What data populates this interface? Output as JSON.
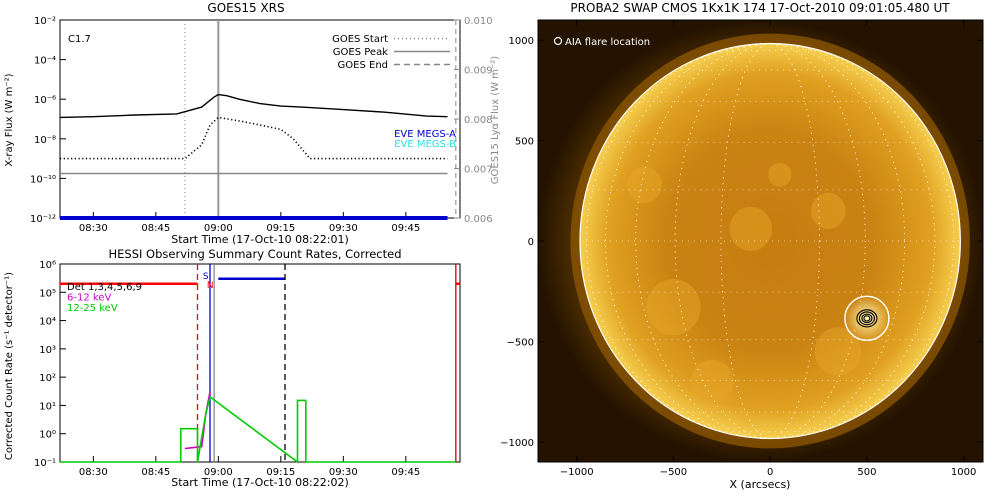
{
  "chart_data": [
    {
      "type": "line",
      "title": "GOES15 XRS",
      "xlabel": "Start Time (17-Oct-10 08:22:01)",
      "ylabel": "X-ray Flux (W m⁻²)",
      "ylabel_right": "GOES15 Lyα Flux (W m⁻²)",
      "y_scale": "log",
      "ylim": [
        1e-12,
        0.01
      ],
      "ylim_right": [
        0.006,
        0.01
      ],
      "x_ticks": [
        "08:30",
        "08:45",
        "09:00",
        "09:15",
        "09:30",
        "09:45"
      ],
      "y_ticks": [
        "10⁻²",
        "10⁻⁴",
        "10⁻⁶",
        "10⁻⁸",
        "10⁻¹⁰",
        "10⁻¹²"
      ],
      "y_ticks_right": [
        "0.010",
        "0.009",
        "0.008",
        "0.007",
        "0.006"
      ],
      "flare_class": "C1.7",
      "legend": [
        {
          "label": "GOES Start",
          "style": "dotted",
          "color": "#888888"
        },
        {
          "label": "GOES Peak",
          "style": "solid",
          "color": "#888888"
        },
        {
          "label": "GOES End",
          "style": "dashed",
          "color": "#888888"
        }
      ],
      "series_labels": [
        {
          "label": "EVE MEGS-A",
          "color": "#0000cc"
        },
        {
          "label": "EVE MEGS-B",
          "color": "#33dddd"
        }
      ],
      "series": [
        {
          "style": "solid",
          "color": "#000000",
          "x": [
            "08:22",
            "08:30",
            "08:40",
            "08:50",
            "08:56",
            "08:59",
            "09:00",
            "09:02",
            "09:05",
            "09:10",
            "09:15",
            "09:20",
            "09:30",
            "09:40",
            "09:50",
            "09:55"
          ],
          "values": [
            1.2e-07,
            1.3e-07,
            1.6e-07,
            1.8e-07,
            4e-07,
            1.3e-06,
            1.7e-06,
            1.5e-06,
            1e-06,
            6e-07,
            4.5e-07,
            4e-07,
            3e-07,
            2.2e-07,
            1.4e-07,
            1.3e-07
          ]
        },
        {
          "style": "dotted",
          "color": "#000000",
          "x": [
            "08:22",
            "08:35",
            "08:45",
            "08:52",
            "08:56",
            "08:58",
            "09:00",
            "09:05",
            "09:10",
            "09:15",
            "09:18",
            "09:22",
            "09:30",
            "09:40",
            "09:50",
            "09:55"
          ],
          "values": [
            1e-09,
            1e-09,
            1e-09,
            1e-09,
            5e-09,
            5e-08,
            1.2e-07,
            8e-08,
            5e-08,
            3e-08,
            1e-08,
            1e-09,
            1e-09,
            1e-09,
            1e-09,
            1e-09
          ]
        },
        {
          "style": "solid",
          "color": "#888888",
          "axis": "right",
          "x": [
            "08:22",
            "09:55"
          ],
          "values": [
            0.0069,
            0.0069
          ]
        },
        {
          "style": "solid",
          "color": "#0000cc",
          "x": [
            "08:22",
            "09:55"
          ],
          "values": [
            1e-12,
            1e-12
          ]
        }
      ],
      "markers": {
        "start": "08:52",
        "peak": "09:00",
        "end": "09:57"
      }
    },
    {
      "type": "line",
      "title": "HESSI Observing Summary Count Rates, Corrected",
      "xlabel": "Start Time (17-Oct-10 08:22:02)",
      "ylabel": "Corrected Count Rate (s⁻¹ detector⁻¹)",
      "y_scale": "log",
      "ylim": [
        0.1,
        1000000.0
      ],
      "x_ticks": [
        "08:30",
        "08:45",
        "09:00",
        "09:15",
        "09:30",
        "09:45"
      ],
      "y_ticks": [
        "10⁶",
        "10⁵",
        "10⁴",
        "10³",
        "10²",
        "10¹",
        "10⁰",
        "10⁻¹"
      ],
      "legend": [
        {
          "label": "Det 1,3,4,5,6,9",
          "color": "#000000"
        },
        {
          "label": "6-12 keV",
          "color": "#cc00cc"
        },
        {
          "label": "12-25 keV",
          "color": "#00cc00"
        }
      ],
      "annotations": [
        "S",
        "N"
      ],
      "series": [
        {
          "name": "6-12 keV",
          "color": "#cc00cc",
          "x": [
            "08:52",
            "08:56",
            "08:57",
            "08:58"
          ],
          "values": [
            0.3,
            0.35,
            5,
            30
          ]
        },
        {
          "name": "12-25 keV",
          "color": "#00cc00",
          "x": [
            "08:22",
            "08:51",
            "08:51",
            "08:55",
            "08:55",
            "08:57",
            "08:58",
            "09:19",
            "09:19",
            "09:21",
            "09:21",
            "09:57"
          ],
          "values": [
            0.1,
            0.1,
            1.5,
            1.5,
            0.1,
            5,
            20,
            0.1,
            15,
            15,
            0.1,
            0.1
          ]
        }
      ],
      "bars": [
        {
          "color": "#ff0000",
          "x0": "08:22",
          "x1": "08:55",
          "y": 200000.0
        },
        {
          "color": "#0000cc",
          "x0": "09:00",
          "x1": "09:16",
          "y": 300000.0
        },
        {
          "color": "#ff0000",
          "x0": "09:57",
          "x1": "09:58",
          "y": 200000.0
        }
      ],
      "vlines": [
        {
          "x": "08:55",
          "style": "dashed",
          "color": "#ff0000"
        },
        {
          "x": "08:58",
          "style": "solid",
          "color": "#0000cc"
        },
        {
          "x": "08:59",
          "style": "solid",
          "color": "#888888"
        },
        {
          "x": "09:16",
          "style": "dashed",
          "color": "#000000"
        },
        {
          "x": "09:57",
          "style": "solid",
          "color": "#cc0000"
        }
      ]
    },
    {
      "type": "heatmap",
      "title": "PROBA2 SWAP CMOS 1Kx1K 174 17-Oct-2010 09:01:05.480 UT",
      "legend_label": "AIA flare location",
      "xlabel": "X (arcsecs)",
      "ylabel": "",
      "xlim": [
        -1200,
        1100
      ],
      "ylim": [
        -1100,
        1100
      ],
      "x_ticks": [
        "−1000",
        "−500",
        "0",
        "500",
        "1000"
      ],
      "y_ticks": [
        "1000",
        "500",
        "0",
        "−500",
        "−1000"
      ],
      "solar_radius_arcsec": 983,
      "flare_location": [
        500,
        -385
      ],
      "colormap": "gold"
    }
  ]
}
